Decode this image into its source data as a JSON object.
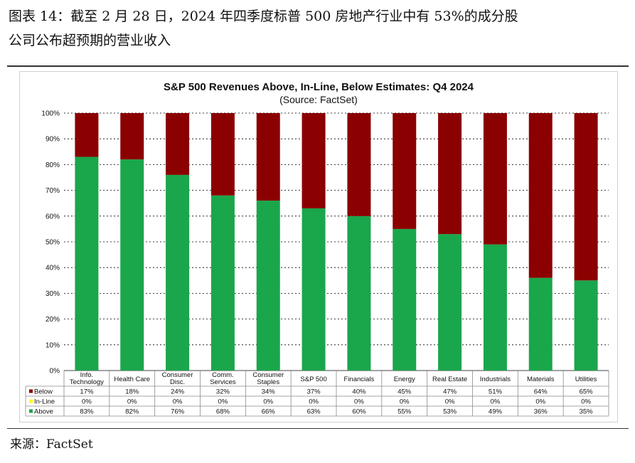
{
  "caption": {
    "line1": "图表 14：截至 2 月 28 日，2024 年四季度标普 500 房地产行业中有 53%的成分股",
    "line2": "公司公布超预期的营业收入"
  },
  "source": "来源：FactSet",
  "colors": {
    "below": "#8b0000",
    "inline": "#ffff00",
    "above": "#1aa64b",
    "grid": "#000000"
  },
  "chart_data": {
    "type": "bar",
    "stacked": true,
    "title": "S&P 500 Revenues Above, In-Line, Below Estimates: Q4 2024",
    "subtitle": "(Source: FactSet)",
    "ylim": [
      0,
      100
    ],
    "yticks": [
      "0%",
      "10%",
      "20%",
      "30%",
      "40%",
      "50%",
      "60%",
      "70%",
      "80%",
      "90%",
      "100%"
    ],
    "categories": [
      [
        "Info.",
        "Technology"
      ],
      [
        "Health Care"
      ],
      [
        "Consumer",
        "Disc."
      ],
      [
        "Comm.",
        "Services"
      ],
      [
        "Consumer",
        "Staples"
      ],
      [
        "S&P 500"
      ],
      [
        "Financials"
      ],
      [
        "Energy"
      ],
      [
        "Real Estate"
      ],
      [
        "Industrials"
      ],
      [
        "Materials"
      ],
      [
        "Utilities"
      ]
    ],
    "series": [
      {
        "name": "Below",
        "color": "#8b0000",
        "values": [
          17,
          18,
          24,
          32,
          34,
          37,
          40,
          45,
          47,
          51,
          64,
          65
        ]
      },
      {
        "name": "In-Line",
        "color": "#ffff00",
        "values": [
          0,
          0,
          0,
          0,
          0,
          0,
          0,
          0,
          0,
          0,
          0,
          0
        ]
      },
      {
        "name": "Above",
        "color": "#1aa64b",
        "values": [
          83,
          82,
          76,
          68,
          66,
          63,
          60,
          55,
          53,
          49,
          36,
          35
        ]
      }
    ],
    "table_rows": [
      {
        "label": "Below",
        "cells": [
          "17%",
          "18%",
          "24%",
          "32%",
          "34%",
          "37%",
          "40%",
          "45%",
          "47%",
          "51%",
          "64%",
          "65%"
        ]
      },
      {
        "label": "In-Line",
        "cells": [
          "0%",
          "0%",
          "0%",
          "0%",
          "0%",
          "0%",
          "0%",
          "0%",
          "0%",
          "0%",
          "0%",
          "0%"
        ]
      },
      {
        "label": "Above",
        "cells": [
          "83%",
          "82%",
          "76%",
          "68%",
          "66%",
          "63%",
          "60%",
          "55%",
          "53%",
          "49%",
          "36%",
          "35%"
        ]
      }
    ]
  }
}
